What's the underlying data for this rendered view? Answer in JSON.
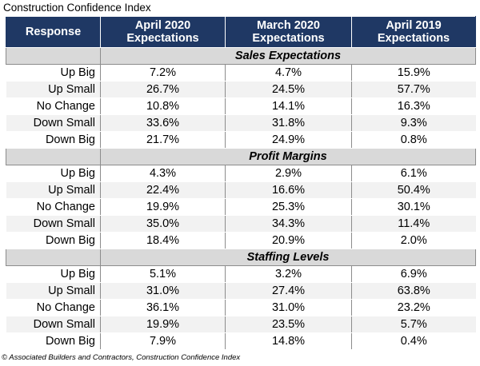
{
  "title": "Construction Confidence Index",
  "source": "© Associated Builders and Contractors, Construction Confidence Index",
  "chart_data": {
    "type": "table",
    "columns": [
      {
        "line1": "Response",
        "line2": ""
      },
      {
        "line1": "April 2020",
        "line2": "Expectations"
      },
      {
        "line1": "March 2020",
        "line2": "Expectations"
      },
      {
        "line1": "April 2019",
        "line2": "Expectations"
      }
    ],
    "sections": [
      {
        "name": "Sales Expectations",
        "rows": [
          {
            "response": "Up Big",
            "values": [
              "7.2%",
              "4.7%",
              "15.9%"
            ]
          },
          {
            "response": "Up Small",
            "values": [
              "26.7%",
              "24.5%",
              "57.7%"
            ]
          },
          {
            "response": "No Change",
            "values": [
              "10.8%",
              "14.1%",
              "16.3%"
            ]
          },
          {
            "response": "Down Small",
            "values": [
              "33.6%",
              "31.8%",
              "9.3%"
            ]
          },
          {
            "response": "Down Big",
            "values": [
              "21.7%",
              "24.9%",
              "0.8%"
            ]
          }
        ]
      },
      {
        "name": "Profit Margins",
        "rows": [
          {
            "response": "Up Big",
            "values": [
              "4.3%",
              "2.9%",
              "6.1%"
            ]
          },
          {
            "response": "Up Small",
            "values": [
              "22.4%",
              "16.6%",
              "50.4%"
            ]
          },
          {
            "response": "No Change",
            "values": [
              "19.9%",
              "25.3%",
              "30.1%"
            ]
          },
          {
            "response": "Down Small",
            "values": [
              "35.0%",
              "34.3%",
              "11.4%"
            ]
          },
          {
            "response": "Down Big",
            "values": [
              "18.4%",
              "20.9%",
              "2.0%"
            ]
          }
        ]
      },
      {
        "name": "Staffing Levels",
        "rows": [
          {
            "response": "Up Big",
            "values": [
              "5.1%",
              "3.2%",
              "6.9%"
            ]
          },
          {
            "response": "Up Small",
            "values": [
              "31.0%",
              "27.4%",
              "63.8%"
            ]
          },
          {
            "response": "No Change",
            "values": [
              "36.1%",
              "31.0%",
              "23.2%"
            ]
          },
          {
            "response": "Down Small",
            "values": [
              "19.9%",
              "23.5%",
              "5.7%"
            ]
          },
          {
            "response": "Down Big",
            "values": [
              "7.9%",
              "14.8%",
              "0.4%"
            ]
          }
        ]
      }
    ]
  }
}
